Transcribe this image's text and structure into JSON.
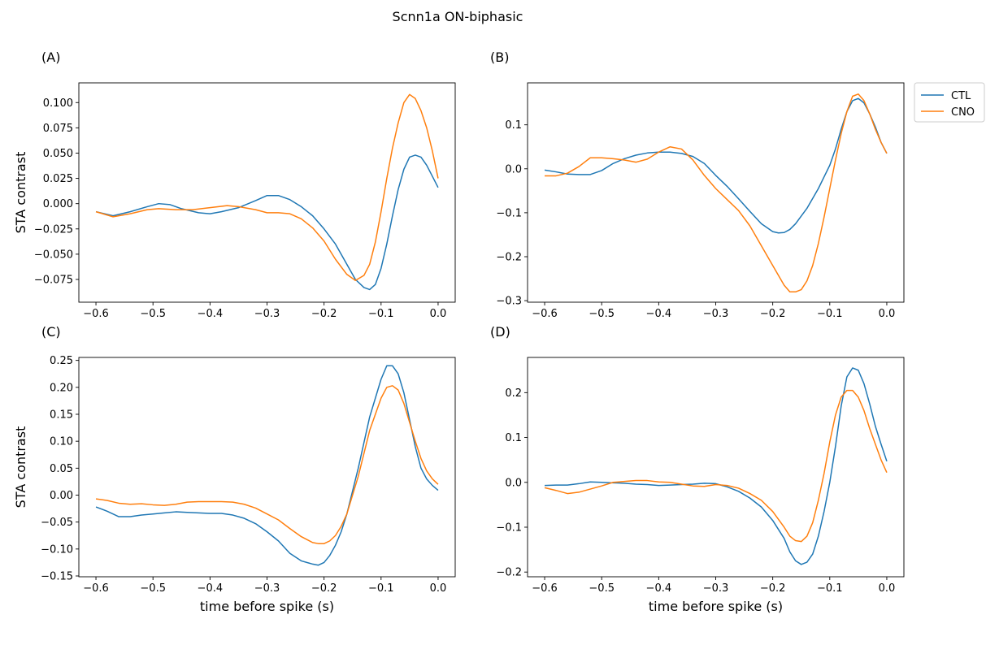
{
  "figure": {
    "title": "Scnn1a ON-biphasic"
  },
  "legend": {
    "entries": [
      {
        "name": "CTL",
        "color": "#1f77b4"
      },
      {
        "name": "CNO",
        "color": "#ff7f0e"
      }
    ]
  },
  "chart_data": [
    {
      "type": "line",
      "panel_label": "(A)",
      "xlabel": "",
      "ylabel": "STA contrast",
      "xlim": [
        -0.63,
        0.03
      ],
      "ylim": [
        -0.0975,
        0.1195
      ],
      "xticks": [
        -0.6,
        -0.5,
        -0.4,
        -0.3,
        -0.2,
        -0.1,
        0.0
      ],
      "xtick_labels": [
        "−0.6",
        "−0.5",
        "−0.4",
        "−0.3",
        "−0.2",
        "−0.1",
        "0.0"
      ],
      "yticks": [
        -0.075,
        -0.05,
        -0.025,
        0.0,
        0.025,
        0.05,
        0.075,
        0.1
      ],
      "ytick_labels": [
        "−0.075",
        "−0.050",
        "−0.025",
        "0.000",
        "0.025",
        "0.050",
        "0.075",
        "0.100"
      ],
      "series": [
        {
          "name": "CTL",
          "color": "#1f77b4",
          "x": [
            -0.6,
            -0.57,
            -0.54,
            -0.51,
            -0.49,
            -0.47,
            -0.45,
            -0.42,
            -0.4,
            -0.38,
            -0.35,
            -0.32,
            -0.3,
            -0.28,
            -0.26,
            -0.24,
            -0.22,
            -0.2,
            -0.18,
            -0.16,
            -0.145,
            -0.13,
            -0.12,
            -0.11,
            -0.1,
            -0.09,
            -0.08,
            -0.07,
            -0.06,
            -0.05,
            -0.04,
            -0.03,
            -0.02,
            -0.01,
            0.0
          ],
          "y": [
            -0.008,
            -0.012,
            -0.008,
            -0.003,
            0.0,
            -0.001,
            -0.005,
            -0.009,
            -0.01,
            -0.008,
            -0.004,
            0.003,
            0.008,
            0.008,
            0.004,
            -0.003,
            -0.012,
            -0.025,
            -0.04,
            -0.06,
            -0.075,
            -0.083,
            -0.085,
            -0.08,
            -0.064,
            -0.04,
            -0.012,
            0.014,
            0.034,
            0.046,
            0.048,
            0.046,
            0.038,
            0.027,
            0.016
          ]
        },
        {
          "name": "CNO",
          "color": "#ff7f0e",
          "x": [
            -0.6,
            -0.57,
            -0.54,
            -0.51,
            -0.49,
            -0.46,
            -0.43,
            -0.4,
            -0.37,
            -0.35,
            -0.32,
            -0.3,
            -0.28,
            -0.26,
            -0.24,
            -0.22,
            -0.2,
            -0.18,
            -0.16,
            -0.145,
            -0.13,
            -0.12,
            -0.11,
            -0.1,
            -0.09,
            -0.08,
            -0.07,
            -0.06,
            -0.05,
            -0.04,
            -0.03,
            -0.02,
            -0.01,
            0.0
          ],
          "y": [
            -0.008,
            -0.013,
            -0.01,
            -0.006,
            -0.005,
            -0.006,
            -0.006,
            -0.004,
            -0.002,
            -0.003,
            -0.006,
            -0.009,
            -0.009,
            -0.01,
            -0.015,
            -0.024,
            -0.037,
            -0.055,
            -0.07,
            -0.076,
            -0.071,
            -0.06,
            -0.038,
            -0.008,
            0.025,
            0.055,
            0.08,
            0.1,
            0.108,
            0.104,
            0.092,
            0.075,
            0.052,
            0.025
          ]
        }
      ]
    },
    {
      "type": "line",
      "panel_label": "(B)",
      "xlabel": "",
      "ylabel": "",
      "xlim": [
        -0.63,
        0.03
      ],
      "ylim": [
        -0.3035,
        0.1955
      ],
      "xticks": [
        -0.6,
        -0.5,
        -0.4,
        -0.3,
        -0.2,
        -0.1,
        0.0
      ],
      "xtick_labels": [
        "−0.6",
        "−0.5",
        "−0.4",
        "−0.3",
        "−0.2",
        "−0.1",
        "0.0"
      ],
      "yticks": [
        -0.3,
        -0.2,
        -0.1,
        0.0,
        0.1
      ],
      "ytick_labels": [
        "−0.3",
        "−0.2",
        "−0.1",
        "0.0",
        "0.1"
      ],
      "series": [
        {
          "name": "CTL",
          "color": "#1f77b4",
          "x": [
            -0.6,
            -0.58,
            -0.56,
            -0.54,
            -0.52,
            -0.5,
            -0.48,
            -0.46,
            -0.44,
            -0.42,
            -0.4,
            -0.38,
            -0.36,
            -0.34,
            -0.32,
            -0.3,
            -0.28,
            -0.26,
            -0.24,
            -0.22,
            -0.2,
            -0.19,
            -0.18,
            -0.17,
            -0.16,
            -0.14,
            -0.12,
            -0.1,
            -0.09,
            -0.08,
            -0.07,
            -0.06,
            -0.05,
            -0.04,
            -0.03,
            -0.02,
            -0.01,
            0.0
          ],
          "y": [
            -0.003,
            -0.007,
            -0.012,
            -0.013,
            -0.013,
            -0.004,
            0.012,
            0.023,
            0.031,
            0.036,
            0.038,
            0.038,
            0.035,
            0.028,
            0.012,
            -0.015,
            -0.04,
            -0.068,
            -0.097,
            -0.125,
            -0.143,
            -0.146,
            -0.145,
            -0.138,
            -0.125,
            -0.09,
            -0.045,
            0.008,
            0.045,
            0.09,
            0.13,
            0.155,
            0.16,
            0.15,
            0.125,
            0.095,
            0.06,
            0.035
          ]
        },
        {
          "name": "CNO",
          "color": "#ff7f0e",
          "x": [
            -0.6,
            -0.58,
            -0.56,
            -0.54,
            -0.52,
            -0.5,
            -0.48,
            -0.46,
            -0.44,
            -0.42,
            -0.4,
            -0.38,
            -0.36,
            -0.34,
            -0.32,
            -0.3,
            -0.28,
            -0.26,
            -0.24,
            -0.22,
            -0.2,
            -0.18,
            -0.17,
            -0.16,
            -0.15,
            -0.14,
            -0.13,
            -0.12,
            -0.11,
            -0.1,
            -0.09,
            -0.08,
            -0.07,
            -0.06,
            -0.05,
            -0.04,
            -0.03,
            -0.02,
            -0.01,
            0.0
          ],
          "y": [
            -0.016,
            -0.016,
            -0.01,
            0.005,
            0.025,
            0.025,
            0.023,
            0.02,
            0.015,
            0.022,
            0.038,
            0.05,
            0.045,
            0.02,
            -0.015,
            -0.045,
            -0.07,
            -0.095,
            -0.13,
            -0.175,
            -0.22,
            -0.265,
            -0.28,
            -0.28,
            -0.275,
            -0.255,
            -0.22,
            -0.17,
            -0.11,
            -0.045,
            0.02,
            0.08,
            0.13,
            0.165,
            0.17,
            0.155,
            0.125,
            0.09,
            0.06,
            0.035
          ]
        }
      ]
    },
    {
      "type": "line",
      "panel_label": "(C)",
      "xlabel": "time before spike (s)",
      "ylabel": "STA contrast",
      "xlim": [
        -0.63,
        0.03
      ],
      "ylim": [
        -0.1515,
        0.2555
      ],
      "xticks": [
        -0.6,
        -0.5,
        -0.4,
        -0.3,
        -0.2,
        -0.1,
        0.0
      ],
      "xtick_labels": [
        "−0.6",
        "−0.5",
        "−0.4",
        "−0.3",
        "−0.2",
        "−0.1",
        "0.0"
      ],
      "yticks": [
        -0.15,
        -0.1,
        -0.05,
        0.0,
        0.05,
        0.1,
        0.15,
        0.2,
        0.25
      ],
      "ytick_labels": [
        "−0.15",
        "−0.10",
        "−0.05",
        "0.00",
        "0.05",
        "0.10",
        "0.15",
        "0.20",
        "0.25"
      ],
      "series": [
        {
          "name": "CTL",
          "color": "#1f77b4",
          "x": [
            -0.6,
            -0.58,
            -0.56,
            -0.54,
            -0.52,
            -0.5,
            -0.48,
            -0.46,
            -0.44,
            -0.42,
            -0.4,
            -0.38,
            -0.36,
            -0.34,
            -0.32,
            -0.3,
            -0.28,
            -0.26,
            -0.24,
            -0.22,
            -0.21,
            -0.2,
            -0.19,
            -0.18,
            -0.17,
            -0.16,
            -0.14,
            -0.12,
            -0.1,
            -0.09,
            -0.08,
            -0.07,
            -0.06,
            -0.05,
            -0.04,
            -0.03,
            -0.02,
            -0.01,
            0.0
          ],
          "y": [
            -0.022,
            -0.03,
            -0.04,
            -0.04,
            -0.037,
            -0.035,
            -0.033,
            -0.031,
            -0.032,
            -0.033,
            -0.034,
            -0.034,
            -0.037,
            -0.043,
            -0.053,
            -0.068,
            -0.085,
            -0.108,
            -0.122,
            -0.128,
            -0.13,
            -0.125,
            -0.112,
            -0.093,
            -0.068,
            -0.035,
            0.05,
            0.145,
            0.215,
            0.24,
            0.24,
            0.225,
            0.19,
            0.14,
            0.09,
            0.05,
            0.03,
            0.018,
            0.009
          ]
        },
        {
          "name": "CNO",
          "color": "#ff7f0e",
          "x": [
            -0.6,
            -0.58,
            -0.56,
            -0.54,
            -0.52,
            -0.5,
            -0.48,
            -0.46,
            -0.44,
            -0.42,
            -0.4,
            -0.38,
            -0.36,
            -0.34,
            -0.32,
            -0.3,
            -0.28,
            -0.26,
            -0.24,
            -0.22,
            -0.21,
            -0.2,
            -0.19,
            -0.18,
            -0.17,
            -0.16,
            -0.14,
            -0.12,
            -0.1,
            -0.09,
            -0.08,
            -0.07,
            -0.06,
            -0.05,
            -0.04,
            -0.03,
            -0.02,
            -0.01,
            0.0
          ],
          "y": [
            -0.007,
            -0.01,
            -0.015,
            -0.017,
            -0.016,
            -0.018,
            -0.019,
            -0.017,
            -0.013,
            -0.012,
            -0.012,
            -0.012,
            -0.013,
            -0.017,
            -0.024,
            -0.035,
            -0.046,
            -0.062,
            -0.077,
            -0.088,
            -0.09,
            -0.09,
            -0.085,
            -0.075,
            -0.058,
            -0.035,
            0.035,
            0.12,
            0.18,
            0.2,
            0.203,
            0.195,
            0.17,
            0.135,
            0.1,
            0.068,
            0.045,
            0.03,
            0.02
          ]
        }
      ]
    },
    {
      "type": "line",
      "panel_label": "(D)",
      "xlabel": "time before spike (s)",
      "ylabel": "",
      "xlim": [
        -0.63,
        0.03
      ],
      "ylim": [
        -0.2105,
        0.2785
      ],
      "xticks": [
        -0.6,
        -0.5,
        -0.4,
        -0.3,
        -0.2,
        -0.1,
        0.0
      ],
      "xtick_labels": [
        "−0.6",
        "−0.5",
        "−0.4",
        "−0.3",
        "−0.2",
        "−0.1",
        "0.0"
      ],
      "yticks": [
        -0.2,
        -0.1,
        0.0,
        0.1,
        0.2
      ],
      "ytick_labels": [
        "−0.2",
        "−0.1",
        "0.0",
        "0.1",
        "0.2"
      ],
      "series": [
        {
          "name": "CTL",
          "color": "#1f77b4",
          "x": [
            -0.6,
            -0.58,
            -0.56,
            -0.54,
            -0.52,
            -0.5,
            -0.48,
            -0.46,
            -0.44,
            -0.42,
            -0.4,
            -0.38,
            -0.36,
            -0.34,
            -0.32,
            -0.3,
            -0.28,
            -0.26,
            -0.24,
            -0.22,
            -0.2,
            -0.18,
            -0.17,
            -0.16,
            -0.15,
            -0.14,
            -0.13,
            -0.12,
            -0.11,
            -0.1,
            -0.09,
            -0.08,
            -0.07,
            -0.06,
            -0.05,
            -0.04,
            -0.03,
            -0.02,
            -0.01,
            0.0
          ],
          "y": [
            -0.007,
            -0.006,
            -0.006,
            -0.003,
            0.001,
            0.0,
            -0.001,
            -0.002,
            -0.004,
            -0.005,
            -0.007,
            -0.006,
            -0.005,
            -0.004,
            -0.002,
            -0.003,
            -0.01,
            -0.02,
            -0.035,
            -0.055,
            -0.085,
            -0.125,
            -0.155,
            -0.175,
            -0.183,
            -0.178,
            -0.16,
            -0.12,
            -0.065,
            0.0,
            0.08,
            0.17,
            0.235,
            0.255,
            0.25,
            0.22,
            0.175,
            0.125,
            0.085,
            0.047
          ]
        },
        {
          "name": "CNO",
          "color": "#ff7f0e",
          "x": [
            -0.6,
            -0.58,
            -0.56,
            -0.54,
            -0.52,
            -0.5,
            -0.48,
            -0.46,
            -0.44,
            -0.42,
            -0.4,
            -0.38,
            -0.36,
            -0.34,
            -0.32,
            -0.3,
            -0.28,
            -0.26,
            -0.24,
            -0.22,
            -0.2,
            -0.18,
            -0.17,
            -0.16,
            -0.15,
            -0.14,
            -0.13,
            -0.12,
            -0.11,
            -0.1,
            -0.09,
            -0.08,
            -0.07,
            -0.06,
            -0.05,
            -0.04,
            -0.03,
            -0.02,
            -0.01,
            0.0
          ],
          "y": [
            -0.012,
            -0.018,
            -0.025,
            -0.022,
            -0.015,
            -0.008,
            0.0,
            0.002,
            0.004,
            0.004,
            0.001,
            0.0,
            -0.004,
            -0.008,
            -0.009,
            -0.005,
            -0.007,
            -0.013,
            -0.025,
            -0.04,
            -0.065,
            -0.1,
            -0.12,
            -0.13,
            -0.132,
            -0.12,
            -0.09,
            -0.04,
            0.02,
            0.09,
            0.15,
            0.19,
            0.205,
            0.205,
            0.19,
            0.16,
            0.12,
            0.085,
            0.05,
            0.022
          ]
        }
      ]
    }
  ]
}
